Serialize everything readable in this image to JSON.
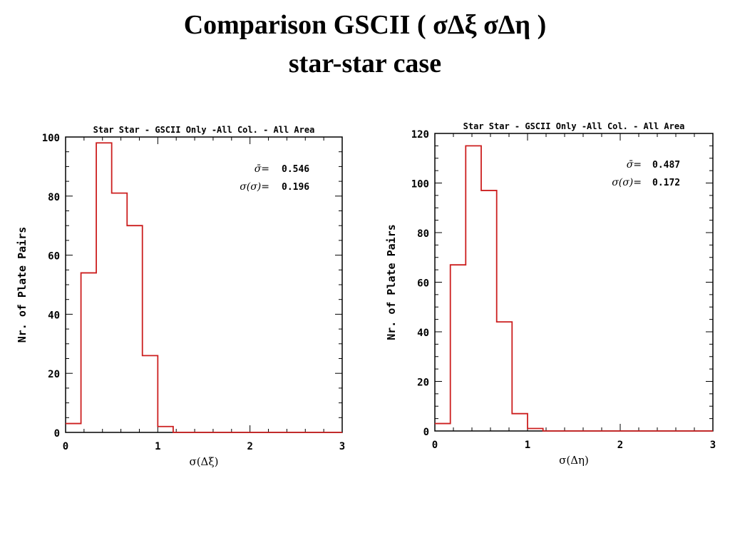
{
  "title": {
    "line1": "Comparison GSCII ( σΔξ  σΔη )",
    "line2": "star-star case"
  },
  "colors": {
    "histogram": "#cc1f1f",
    "axes": "#000000"
  },
  "chart_data": [
    {
      "type": "histogram",
      "title": "Star Star - GSCII Only -All Col. - All Area",
      "xlabel": "σ(Δξ)",
      "ylabel": "Nr. of Plate Pairs",
      "xlim": [
        0,
        3
      ],
      "ylim": [
        0,
        100
      ],
      "xticks": [
        0,
        1,
        2,
        3
      ],
      "yticks": [
        0,
        20,
        40,
        60,
        80,
        100
      ],
      "bin_edges": [
        0,
        0.167,
        0.333,
        0.5,
        0.667,
        0.833,
        1.0,
        1.167,
        1.333,
        1.5,
        1.667,
        1.833,
        2.0,
        2.167,
        2.333,
        2.5,
        2.667,
        2.833,
        3.0
      ],
      "counts": [
        3,
        54,
        98,
        81,
        70,
        26,
        2,
        0,
        0,
        0,
        0,
        0,
        0,
        0,
        0,
        0,
        0,
        0
      ],
      "stats": [
        {
          "label": "σ̄=",
          "value": "0.546"
        },
        {
          "label": "σ(σ)=",
          "value": "0.196"
        }
      ]
    },
    {
      "type": "histogram",
      "title": "Star Star - GSCII Only -All Col. - All Area",
      "xlabel": "σ(Δη)",
      "ylabel": "Nr. of Plate Pairs",
      "xlim": [
        0,
        3
      ],
      "ylim": [
        0,
        120
      ],
      "xticks": [
        0,
        1,
        2,
        3
      ],
      "yticks": [
        0,
        20,
        40,
        60,
        80,
        100,
        120
      ],
      "bin_edges": [
        0,
        0.167,
        0.333,
        0.5,
        0.667,
        0.833,
        1.0,
        1.167,
        1.333,
        1.5,
        1.667,
        1.833,
        2.0,
        2.167,
        2.333,
        2.5,
        2.667,
        2.833,
        3.0
      ],
      "counts": [
        3,
        67,
        115,
        97,
        44,
        7,
        1,
        0,
        0,
        0,
        0,
        0,
        0,
        0,
        0,
        0,
        0,
        0
      ],
      "stats": [
        {
          "label": "σ̄=",
          "value": "0.487"
        },
        {
          "label": "σ(σ)=",
          "value": "0.172"
        }
      ]
    }
  ]
}
